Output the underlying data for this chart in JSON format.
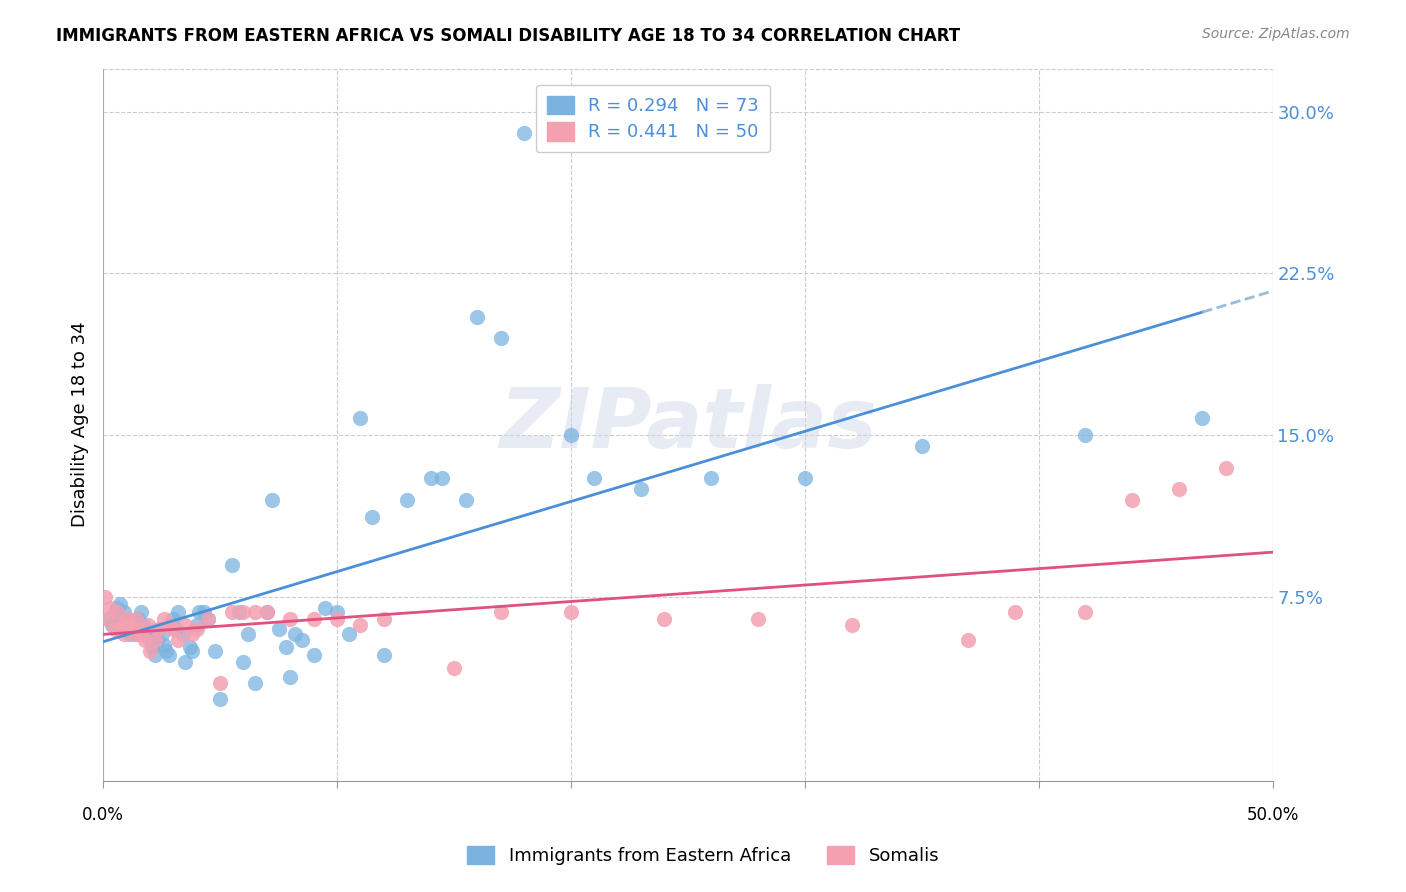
{
  "title": "IMMIGRANTS FROM EASTERN AFRICA VS SOMALI DISABILITY AGE 18 TO 34 CORRELATION CHART",
  "source": "Source: ZipAtlas.com",
  "ylabel": "Disability Age 18 to 34",
  "y_tick_labels": [
    "7.5%",
    "15.0%",
    "22.5%",
    "30.0%"
  ],
  "y_tick_values": [
    0.075,
    0.15,
    0.225,
    0.3
  ],
  "xlim": [
    0.0,
    0.5
  ],
  "ylim": [
    -0.01,
    0.32
  ],
  "blue_color": "#7ab3e0",
  "pink_color": "#f4a0b0",
  "trend_blue": "#4a90d9",
  "trend_pink": "#e05080",
  "trend_blue_dash": "#9abcd9",
  "watermark": "ZIPatlas",
  "legend_label1": "R = 0.294   N = 73",
  "legend_label2": "R = 0.441   N = 50",
  "bottom_label1": "Immigrants from Eastern Africa",
  "bottom_label2": "Somalis",
  "eastern_africa_x": [
    0.002,
    0.004,
    0.005,
    0.006,
    0.007,
    0.008,
    0.009,
    0.01,
    0.011,
    0.012,
    0.013,
    0.014,
    0.015,
    0.016,
    0.017,
    0.018,
    0.019,
    0.02,
    0.021,
    0.022,
    0.023,
    0.024,
    0.025,
    0.026,
    0.027,
    0.028,
    0.03,
    0.031,
    0.032,
    0.034,
    0.035,
    0.037,
    0.038,
    0.04,
    0.041,
    0.043,
    0.045,
    0.048,
    0.05,
    0.055,
    0.058,
    0.06,
    0.062,
    0.065,
    0.07,
    0.072,
    0.075,
    0.078,
    0.08,
    0.082,
    0.085,
    0.09,
    0.095,
    0.1,
    0.105,
    0.11,
    0.115,
    0.12,
    0.13,
    0.14,
    0.145,
    0.155,
    0.16,
    0.17,
    0.18,
    0.2,
    0.21,
    0.23,
    0.26,
    0.3,
    0.35,
    0.42,
    0.47
  ],
  "eastern_africa_y": [
    0.065,
    0.062,
    0.068,
    0.07,
    0.072,
    0.065,
    0.068,
    0.06,
    0.058,
    0.062,
    0.06,
    0.058,
    0.065,
    0.068,
    0.062,
    0.06,
    0.058,
    0.055,
    0.052,
    0.048,
    0.055,
    0.06,
    0.058,
    0.053,
    0.05,
    0.048,
    0.065,
    0.06,
    0.068,
    0.058,
    0.045,
    0.052,
    0.05,
    0.062,
    0.068,
    0.068,
    0.065,
    0.05,
    0.028,
    0.09,
    0.068,
    0.045,
    0.058,
    0.035,
    0.068,
    0.12,
    0.06,
    0.052,
    0.038,
    0.058,
    0.055,
    0.048,
    0.07,
    0.068,
    0.058,
    0.158,
    0.112,
    0.048,
    0.12,
    0.13,
    0.13,
    0.12,
    0.205,
    0.195,
    0.29,
    0.15,
    0.13,
    0.125,
    0.13,
    0.13,
    0.145,
    0.15,
    0.158
  ],
  "somali_x": [
    0.001,
    0.002,
    0.003,
    0.005,
    0.006,
    0.007,
    0.008,
    0.009,
    0.01,
    0.011,
    0.012,
    0.013,
    0.014,
    0.015,
    0.016,
    0.018,
    0.019,
    0.02,
    0.022,
    0.024,
    0.026,
    0.028,
    0.03,
    0.032,
    0.035,
    0.038,
    0.04,
    0.045,
    0.05,
    0.055,
    0.06,
    0.065,
    0.07,
    0.08,
    0.09,
    0.1,
    0.11,
    0.12,
    0.15,
    0.17,
    0.2,
    0.24,
    0.28,
    0.32,
    0.37,
    0.39,
    0.42,
    0.44,
    0.46,
    0.48
  ],
  "somali_y": [
    0.075,
    0.065,
    0.07,
    0.06,
    0.068,
    0.06,
    0.062,
    0.058,
    0.065,
    0.062,
    0.06,
    0.058,
    0.065,
    0.06,
    0.058,
    0.055,
    0.062,
    0.05,
    0.055,
    0.06,
    0.065,
    0.062,
    0.06,
    0.055,
    0.062,
    0.058,
    0.06,
    0.065,
    0.035,
    0.068,
    0.068,
    0.068,
    0.068,
    0.065,
    0.065,
    0.065,
    0.062,
    0.065,
    0.042,
    0.068,
    0.068,
    0.065,
    0.065,
    0.062,
    0.055,
    0.068,
    0.068,
    0.12,
    0.125,
    0.135
  ]
}
